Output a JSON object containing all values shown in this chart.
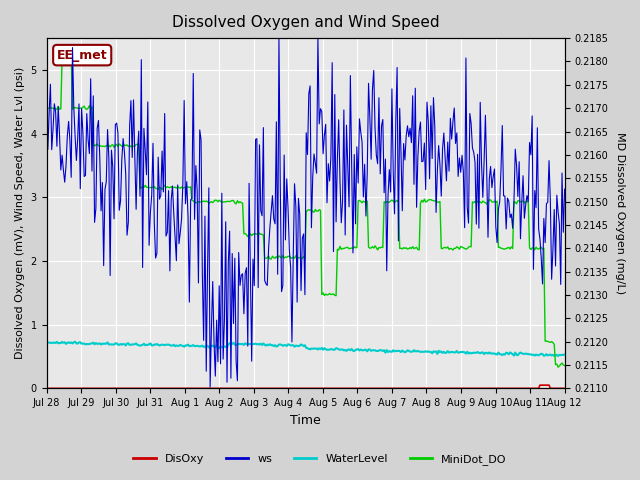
{
  "title": "Dissolved Oxygen and Wind Speed",
  "xlabel": "Time",
  "ylabel_left": "Dissolved Oxygen (mV), Wind Speed, Water Lvl (psi)",
  "ylabel_right": "MD Dissolved Oxygen (mg/L)",
  "ylim_left": [
    0.0,
    5.5
  ],
  "ylim_right": [
    0.211,
    0.2185
  ],
  "yticks_right": [
    0.211,
    0.2115,
    0.212,
    0.2125,
    0.213,
    0.2135,
    0.214,
    0.2145,
    0.215,
    0.2155,
    0.216,
    0.2165,
    0.217,
    0.2175,
    0.218,
    0.2185
  ],
  "station_label": "EE_met",
  "station_label_color": "#8B0000",
  "background_color": "#d3d3d3",
  "plot_bg_color": "#e8e8e8",
  "grid_color": "white",
  "colors": {
    "DisOxy": "#cc0000",
    "ws": "#0000cc",
    "WaterLevel": "#00cccc",
    "MiniDot_DO": "#00cc00"
  },
  "x_tick_labels": [
    "Jul 28",
    "Jul 29",
    "Jul 30",
    "Jul 31",
    "Aug 1",
    "Aug 2",
    "Aug 3",
    "Aug 4",
    "Aug 5",
    "Aug 6",
    "Aug 7",
    "Aug 8",
    "Aug 9",
    "Aug 10",
    "Aug 11",
    "Aug 12"
  ],
  "n_points": 400
}
